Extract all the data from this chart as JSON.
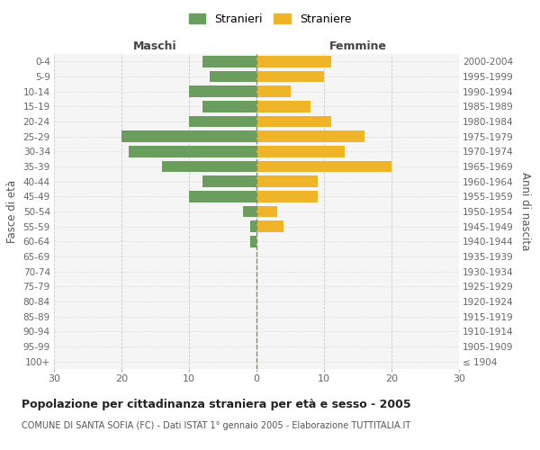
{
  "age_groups": [
    "100+",
    "95-99",
    "90-94",
    "85-89",
    "80-84",
    "75-79",
    "70-74",
    "65-69",
    "60-64",
    "55-59",
    "50-54",
    "45-49",
    "40-44",
    "35-39",
    "30-34",
    "25-29",
    "20-24",
    "15-19",
    "10-14",
    "5-9",
    "0-4"
  ],
  "birth_years": [
    "≤ 1904",
    "1905-1909",
    "1910-1914",
    "1915-1919",
    "1920-1924",
    "1925-1929",
    "1930-1934",
    "1935-1939",
    "1940-1944",
    "1945-1949",
    "1950-1954",
    "1955-1959",
    "1960-1964",
    "1965-1969",
    "1970-1974",
    "1975-1979",
    "1980-1984",
    "1985-1989",
    "1990-1994",
    "1995-1999",
    "2000-2004"
  ],
  "maschi": [
    0,
    0,
    0,
    0,
    0,
    0,
    0,
    0,
    1,
    1,
    2,
    10,
    8,
    14,
    19,
    20,
    10,
    8,
    10,
    7,
    8
  ],
  "femmine": [
    0,
    0,
    0,
    0,
    0,
    0,
    0,
    0,
    0,
    4,
    3,
    9,
    9,
    20,
    13,
    16,
    11,
    8,
    5,
    10,
    11
  ],
  "male_color": "#6b9e5e",
  "female_color": "#f0b429",
  "center_line_color": "#8a8a5c",
  "grid_color": "#cccccc",
  "xlim": 30,
  "title": "Popolazione per cittadinanza straniera per età e sesso - 2005",
  "subtitle": "COMUNE DI SANTA SOFIA (FC) - Dati ISTAT 1° gennaio 2005 - Elaborazione TUTTITALIA.IT",
  "left_header": "Maschi",
  "right_header": "Femmine",
  "left_ylabel": "Fasce di età",
  "right_ylabel": "Anni di nascita",
  "legend_male": "Stranieri",
  "legend_female": "Straniere",
  "bg_color": "#ffffff",
  "plot_bg_color": "#f5f5f5"
}
